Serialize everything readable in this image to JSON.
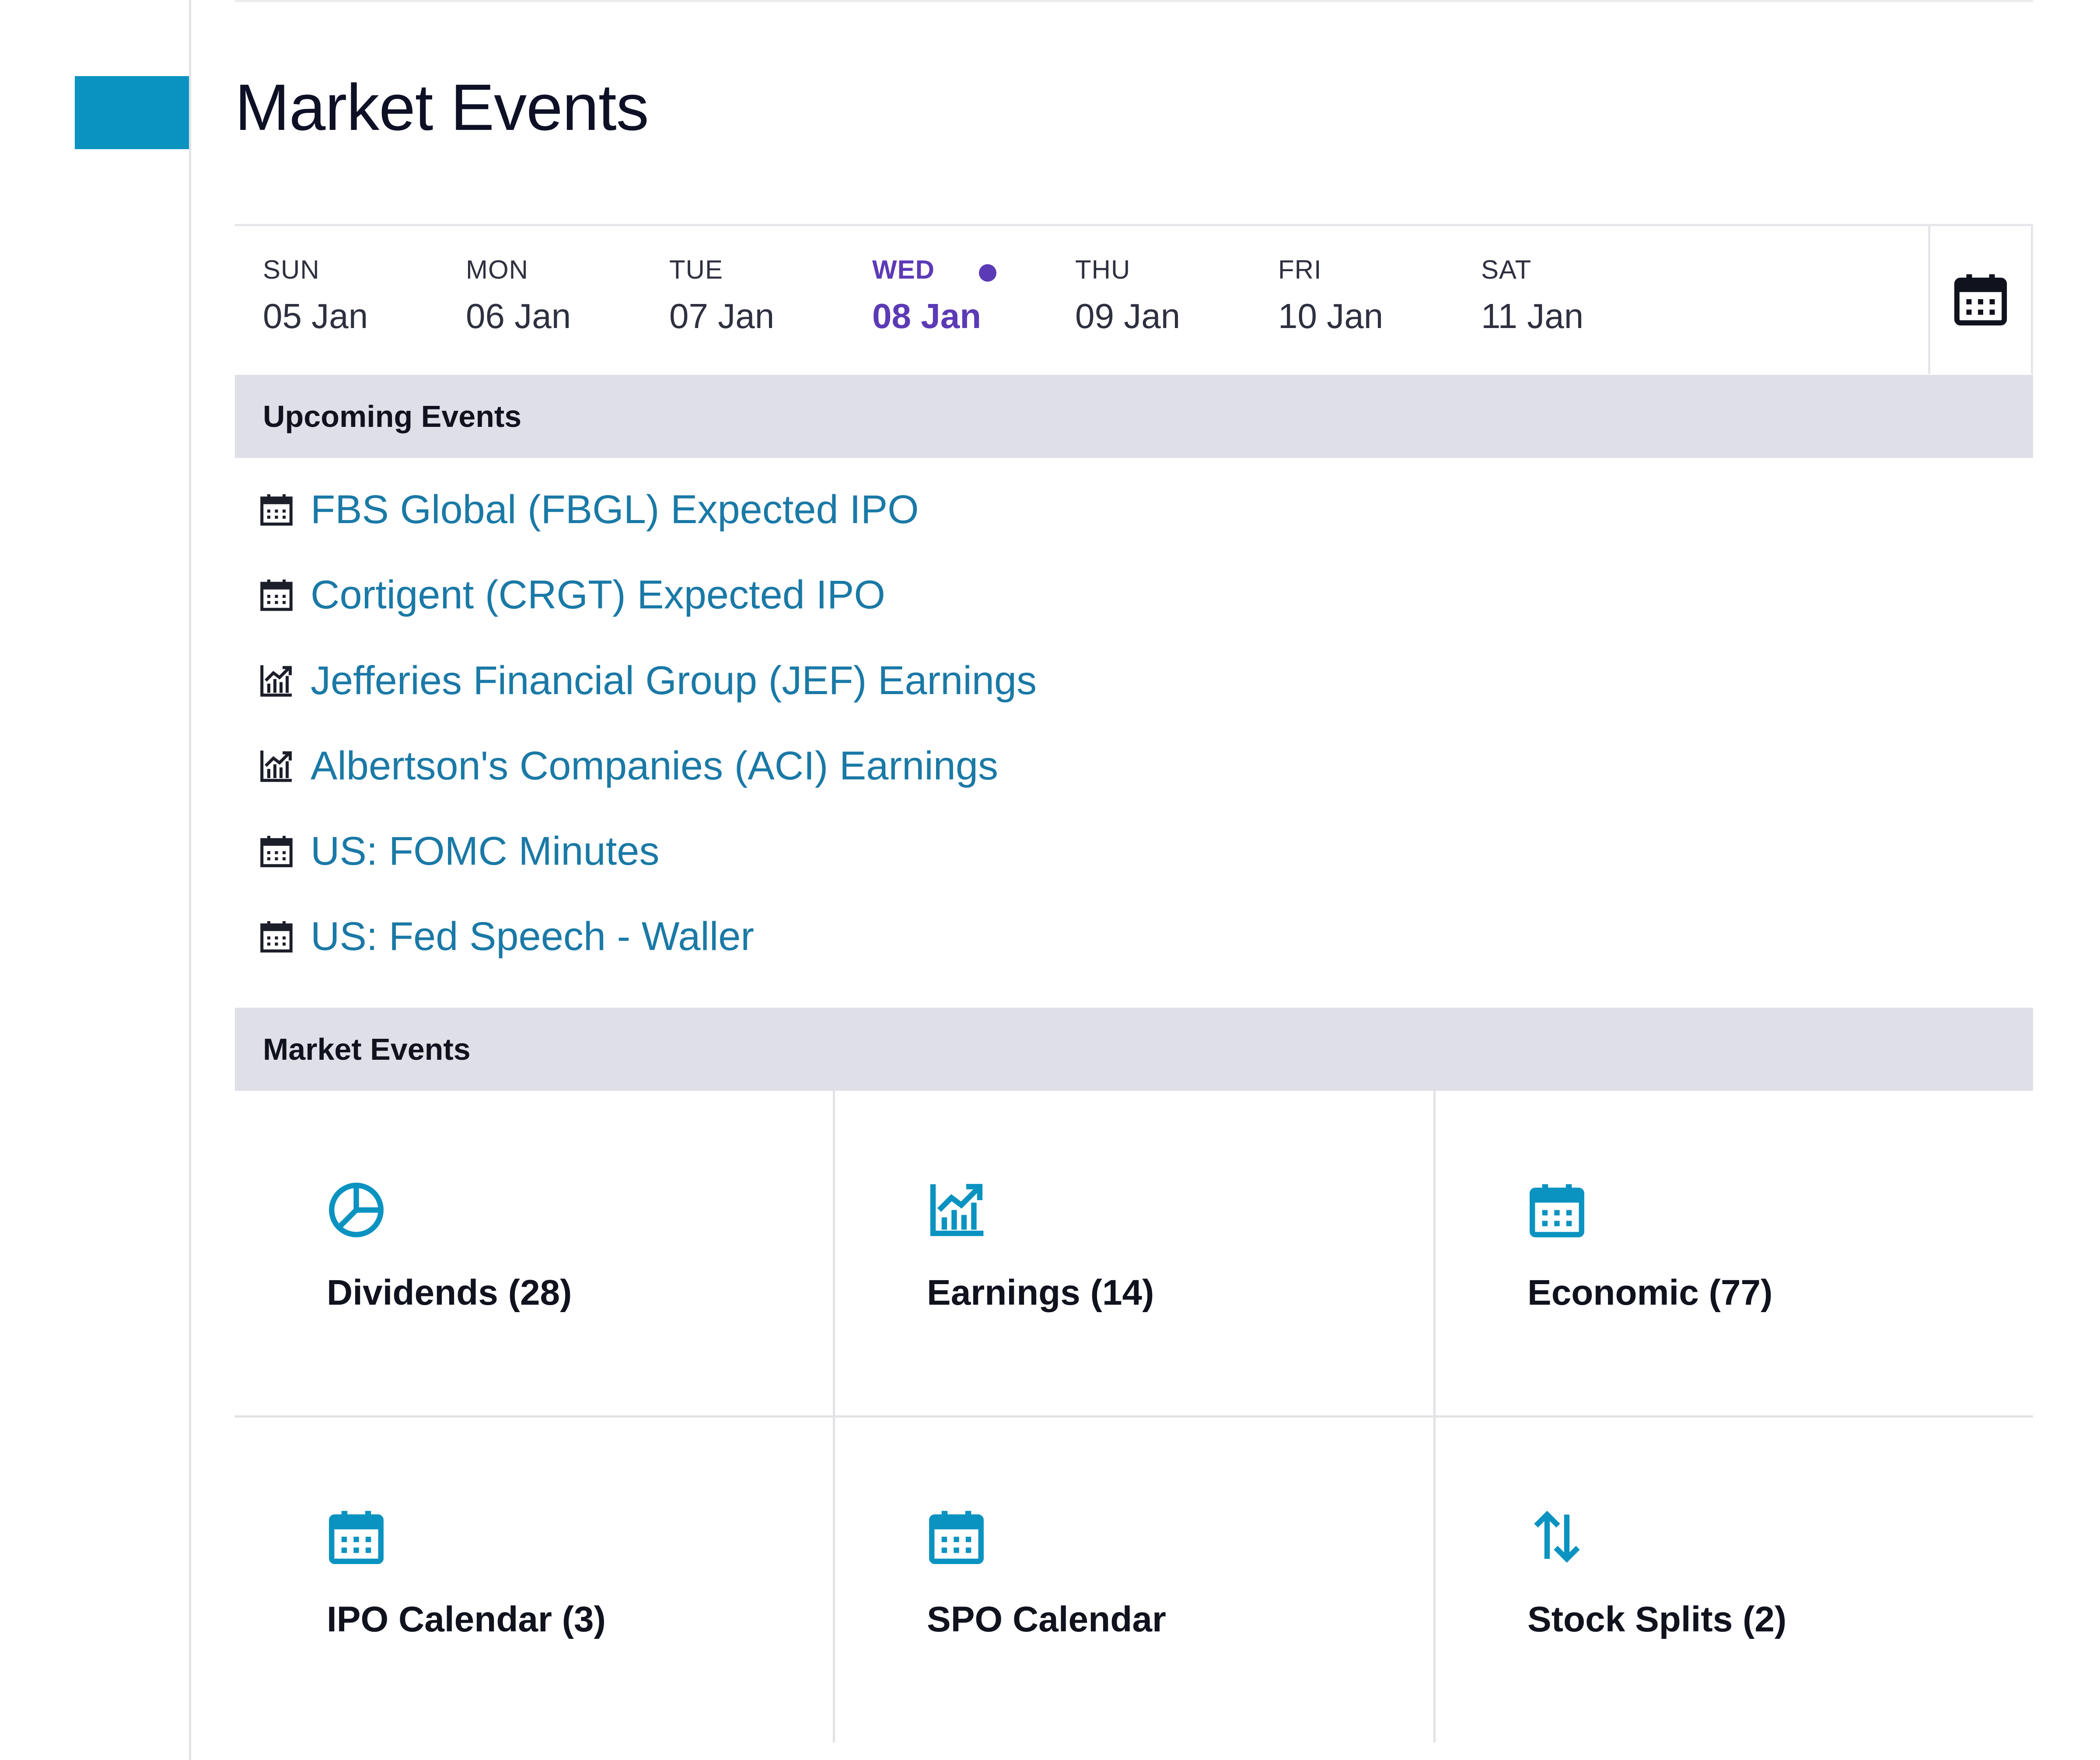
{
  "page": {
    "title": "Market Events"
  },
  "week": {
    "days": [
      {
        "dow": "SUN",
        "date": "05 Jan"
      },
      {
        "dow": "MON",
        "date": "06 Jan"
      },
      {
        "dow": "TUE",
        "date": "07 Jan"
      },
      {
        "dow": "WED",
        "date": "08 Jan"
      },
      {
        "dow": "THU",
        "date": "09 Jan"
      },
      {
        "dow": "FRI",
        "date": "10 Jan"
      },
      {
        "dow": "SAT",
        "date": "11 Jan"
      }
    ],
    "selected_day": "WED",
    "calendar_button_icon": "calendar-icon"
  },
  "upcoming": {
    "heading": "Upcoming Events",
    "items": [
      {
        "label": "FBS Global (FBGL) Expected IPO",
        "icon": "calendar-icon"
      },
      {
        "label": "Cortigent (CRGT) Expected IPO",
        "icon": "calendar-icon"
      },
      {
        "label": "Jefferies Financial Group (JEF) Earnings",
        "icon": "earnings-chart-icon"
      },
      {
        "label": "Albertson's Companies (ACI) Earnings",
        "icon": "earnings-chart-icon"
      },
      {
        "label": "US: FOMC Minutes",
        "icon": "calendar-icon"
      },
      {
        "label": "US: Fed Speech - Waller",
        "icon": "calendar-icon"
      }
    ]
  },
  "market_events": {
    "heading": "Market Events",
    "tiles": [
      {
        "label": "Dividends (28)",
        "icon": "pie-chart-icon"
      },
      {
        "label": "Earnings (14)",
        "icon": "earnings-chart-icon"
      },
      {
        "label": "Economic (77)",
        "icon": "calendar-icon"
      },
      {
        "label": "IPO Calendar (3)",
        "icon": "calendar-icon"
      },
      {
        "label": "SPO Calendar",
        "icon": "calendar-icon"
      },
      {
        "label": "Stock Splits (2)",
        "icon": "up-down-arrows-icon"
      }
    ]
  },
  "colors": {
    "accent": "#0a93c0",
    "link": "#1a79a6",
    "selected_day": "#5b3ab6",
    "section_bar": "#dfe0e7"
  }
}
